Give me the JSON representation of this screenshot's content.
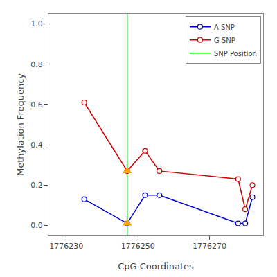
{
  "chart_data": {
    "type": "line",
    "xlabel": "CpG Coordinates",
    "ylabel": "Methylation Frequency",
    "xlim": [
      1776225,
      1776285
    ],
    "ylim": [
      -0.05,
      1.05
    ],
    "xticks": [
      1776230,
      1776250,
      1776270
    ],
    "yticks": [
      {
        "value": 0,
        "label": "0.0"
      },
      0.2,
      0.4,
      0.6,
      0.8,
      {
        "value": 1,
        "label": "1.0"
      }
    ],
    "grid": false,
    "legend": "upper right",
    "series": [
      {
        "name": "A SNP",
        "type": "line",
        "color": "#0000cc",
        "marker": "circle-open",
        "x": [
          1776235,
          1776247,
          1776252,
          1776256,
          1776278,
          1776280,
          1776282
        ],
        "values": [
          0.13,
          0.01,
          0.15,
          0.15,
          0.01,
          0.01,
          0.14
        ]
      },
      {
        "name": "G SNP",
        "type": "line",
        "color": "#cc0000",
        "marker": "circle-open",
        "x": [
          1776235,
          1776247,
          1776252,
          1776256,
          1776278,
          1776280,
          1776282
        ],
        "values": [
          0.61,
          0.27,
          0.37,
          0.27,
          0.23,
          0.08,
          0.2
        ]
      },
      {
        "name": "SNP Position",
        "type": "vline",
        "color": "#00cc00",
        "x": [
          1776247
        ]
      },
      {
        "type": "scatter",
        "color": "#FFA500",
        "marker": "triangle-up",
        "x": [
          1776247,
          1776247
        ],
        "values": [
          0.01,
          0.27
        ]
      }
    ]
  }
}
